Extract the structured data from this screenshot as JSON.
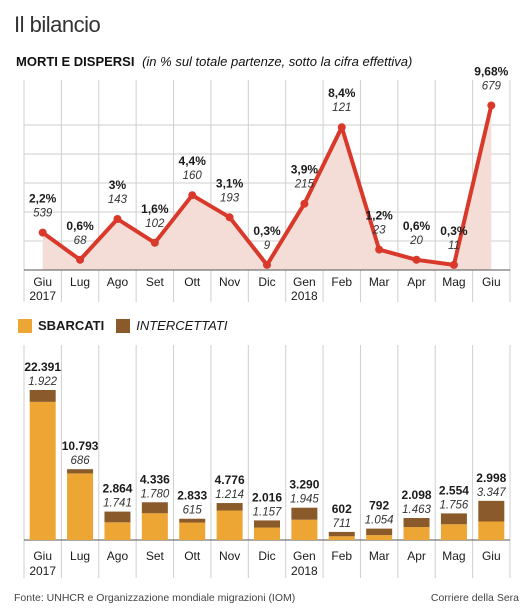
{
  "header": {
    "title": "Il bilancio",
    "subtitle_strong": "MORTI E DISPERSI",
    "subtitle_note": "(in % sul totale partenze, sotto la cifra effettiva)"
  },
  "legend": {
    "landed_label": "SBARCATI",
    "intercepted_label": "INTERCETTATI"
  },
  "footer": {
    "source": "Fonte: UNHCR e Organizzazione mondiale migrazioni (IOM)",
    "brand": "Corriere della Sera"
  },
  "colors": {
    "line": "#d9392b",
    "area": "#f4ddd6",
    "landed": "#eda534",
    "intercepted": "#8a5a2b",
    "grid": "#cfcfcf"
  },
  "chart_data": [
    {
      "type": "line",
      "title": "MORTI E DISPERSI",
      "categories": [
        {
          "month": "Giu",
          "year": "2017"
        },
        {
          "month": "Lug",
          "year": ""
        },
        {
          "month": "Ago",
          "year": ""
        },
        {
          "month": "Set",
          "year": ""
        },
        {
          "month": "Ott",
          "year": ""
        },
        {
          "month": "Nov",
          "year": ""
        },
        {
          "month": "Dic",
          "year": ""
        },
        {
          "month": "Gen",
          "year": "2018"
        },
        {
          "month": "Feb",
          "year": ""
        },
        {
          "month": "Mar",
          "year": ""
        },
        {
          "month": "Apr",
          "year": ""
        },
        {
          "month": "Mag",
          "year": ""
        },
        {
          "month": "Giu",
          "year": ""
        }
      ],
      "percent_labels": [
        "2,2%",
        "0,6%",
        "3%",
        "1,6%",
        "4,4%",
        "3,1%",
        "0,3%",
        "3,9%",
        "8,4%",
        "1,2%",
        "0,6%",
        "0,3%",
        "9,68%"
      ],
      "values": [
        2.2,
        0.6,
        3.0,
        1.6,
        4.4,
        3.1,
        0.3,
        3.9,
        8.4,
        1.2,
        0.6,
        0.3,
        9.68
      ],
      "counts": [
        "539",
        "68",
        "143",
        "102",
        "160",
        "193",
        "9",
        "215",
        "121",
        "23",
        "20",
        "11",
        "679"
      ],
      "ylim": [
        0,
        10
      ],
      "grid": true
    },
    {
      "type": "bar",
      "stacked": true,
      "categories": [
        {
          "month": "Giu",
          "year": "2017"
        },
        {
          "month": "Lug",
          "year": ""
        },
        {
          "month": "Ago",
          "year": ""
        },
        {
          "month": "Set",
          "year": ""
        },
        {
          "month": "Ott",
          "year": ""
        },
        {
          "month": "Nov",
          "year": ""
        },
        {
          "month": "Dic",
          "year": ""
        },
        {
          "month": "Gen",
          "year": "2018"
        },
        {
          "month": "Feb",
          "year": ""
        },
        {
          "month": "Mar",
          "year": ""
        },
        {
          "month": "Apr",
          "year": ""
        },
        {
          "month": "Mag",
          "year": ""
        },
        {
          "month": "Giu",
          "year": ""
        }
      ],
      "series": [
        {
          "name": "SBARCATI",
          "values": [
            22391,
            10793,
            2864,
            4336,
            2833,
            4776,
            2016,
            3290,
            602,
            792,
            2098,
            2554,
            2998
          ],
          "labels": [
            "22.391",
            "10.793",
            "2.864",
            "4.336",
            "2.833",
            "4.776",
            "2.016",
            "3.290",
            "602",
            "792",
            "2.098",
            "2.554",
            "2.998"
          ]
        },
        {
          "name": "INTERCETTATI",
          "values": [
            1922,
            686,
            1741,
            1780,
            615,
            1214,
            1157,
            1945,
            711,
            1054,
            1463,
            1756,
            3347
          ],
          "labels": [
            "1.922",
            "686",
            "1.741",
            "1.780",
            "615",
            "1.214",
            "1.157",
            "1.945",
            "711",
            "1.054",
            "1.463",
            "1.756",
            "3.347"
          ]
        }
      ],
      "grid": true
    }
  ]
}
